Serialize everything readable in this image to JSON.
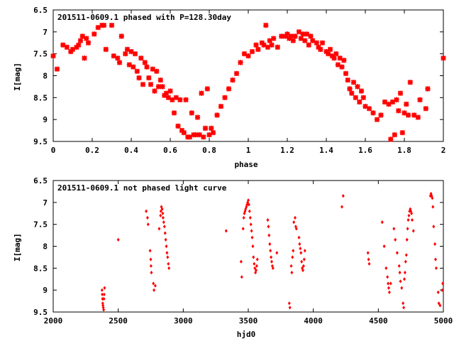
{
  "chart_data": [
    {
      "type": "scatter",
      "title": "201511-0609.1 phased with P=128.30day",
      "xlabel": "phase",
      "ylabel": "I[mag]",
      "xlim": [
        0,
        2
      ],
      "ylim": [
        9.5,
        6.5
      ],
      "y_inverted": true,
      "x_ticks": [
        0,
        0.2,
        0.4,
        0.6,
        0.8,
        1,
        1.2,
        1.4,
        1.6,
        1.8,
        2
      ],
      "x_tick_labels": [
        "0",
        "0.2",
        "0.4",
        "0.6",
        "0.8",
        "1",
        "1.2",
        "1.4",
        "1.6",
        "1.8",
        "2"
      ],
      "y_ticks": [
        6.5,
        7,
        7.5,
        8,
        8.5,
        9,
        9.5
      ],
      "y_tick_labels": [
        "6.5",
        "7",
        "7.5",
        "8",
        "8.5",
        "9",
        "9.5"
      ],
      "marker": "star",
      "color": "#ff0000",
      "grid": false,
      "points": [
        [
          0.0,
          7.55
        ],
        [
          0.02,
          7.85
        ],
        [
          0.05,
          7.3
        ],
        [
          0.07,
          7.35
        ],
        [
          0.09,
          7.45
        ],
        [
          0.1,
          7.4
        ],
        [
          0.12,
          7.35
        ],
        [
          0.13,
          7.3
        ],
        [
          0.14,
          7.2
        ],
        [
          0.15,
          7.1
        ],
        [
          0.16,
          7.6
        ],
        [
          0.17,
          7.15
        ],
        [
          0.18,
          7.25
        ],
        [
          0.21,
          7.05
        ],
        [
          0.23,
          6.9
        ],
        [
          0.25,
          6.85
        ],
        [
          0.26,
          6.85
        ],
        [
          0.27,
          7.4
        ],
        [
          0.3,
          6.85
        ],
        [
          0.31,
          7.55
        ],
        [
          0.33,
          7.6
        ],
        [
          0.34,
          7.7
        ],
        [
          0.35,
          7.1
        ],
        [
          0.37,
          7.5
        ],
        [
          0.38,
          7.4
        ],
        [
          0.39,
          7.75
        ],
        [
          0.4,
          7.45
        ],
        [
          0.41,
          7.8
        ],
        [
          0.42,
          7.5
        ],
        [
          0.43,
          7.9
        ],
        [
          0.44,
          8.05
        ],
        [
          0.45,
          7.6
        ],
        [
          0.46,
          8.2
        ],
        [
          0.47,
          7.7
        ],
        [
          0.48,
          7.8
        ],
        [
          0.49,
          8.05
        ],
        [
          0.5,
          8.2
        ],
        [
          0.51,
          7.85
        ],
        [
          0.52,
          8.35
        ],
        [
          0.53,
          7.9
        ],
        [
          0.54,
          8.25
        ],
        [
          0.55,
          8.1
        ],
        [
          0.56,
          8.25
        ],
        [
          0.57,
          8.45
        ],
        [
          0.58,
          8.4
        ],
        [
          0.59,
          8.5
        ],
        [
          0.6,
          8.35
        ],
        [
          0.61,
          8.55
        ],
        [
          0.62,
          8.85
        ],
        [
          0.63,
          8.5
        ],
        [
          0.64,
          9.15
        ],
        [
          0.65,
          8.55
        ],
        [
          0.66,
          9.25
        ],
        [
          0.67,
          9.3
        ],
        [
          0.68,
          8.55
        ],
        [
          0.69,
          9.4
        ],
        [
          0.7,
          9.4
        ],
        [
          0.71,
          8.85
        ],
        [
          0.72,
          9.35
        ],
        [
          0.73,
          9.35
        ],
        [
          0.74,
          8.95
        ],
        [
          0.75,
          9.35
        ],
        [
          0.76,
          8.4
        ],
        [
          0.77,
          9.4
        ],
        [
          0.78,
          9.2
        ],
        [
          0.79,
          8.3
        ],
        [
          0.8,
          9.35
        ],
        [
          0.81,
          9.2
        ],
        [
          0.82,
          9.3
        ],
        [
          0.84,
          8.9
        ],
        [
          0.86,
          8.7
        ],
        [
          0.88,
          8.5
        ],
        [
          0.9,
          8.3
        ],
        [
          0.92,
          8.1
        ],
        [
          0.94,
          7.95
        ],
        [
          0.96,
          7.7
        ],
        [
          0.98,
          7.5
        ],
        [
          1.0,
          7.55
        ],
        [
          1.02,
          7.45
        ],
        [
          1.04,
          7.3
        ],
        [
          1.05,
          7.4
        ],
        [
          1.07,
          7.25
        ],
        [
          1.08,
          7.3
        ],
        [
          1.09,
          6.85
        ],
        [
          1.1,
          7.35
        ],
        [
          1.11,
          7.2
        ],
        [
          1.12,
          7.3
        ],
        [
          1.13,
          7.15
        ],
        [
          1.15,
          7.35
        ],
        [
          1.17,
          7.1
        ],
        [
          1.19,
          7.1
        ],
        [
          1.2,
          7.05
        ],
        [
          1.21,
          7.15
        ],
        [
          1.22,
          7.1
        ],
        [
          1.23,
          7.2
        ],
        [
          1.24,
          7.1
        ],
        [
          1.26,
          7.0
        ],
        [
          1.27,
          7.15
        ],
        [
          1.28,
          7.05
        ],
        [
          1.29,
          7.2
        ],
        [
          1.3,
          7.05
        ],
        [
          1.31,
          7.3
        ],
        [
          1.32,
          7.1
        ],
        [
          1.33,
          7.2
        ],
        [
          1.35,
          7.25
        ],
        [
          1.36,
          7.35
        ],
        [
          1.37,
          7.4
        ],
        [
          1.38,
          7.25
        ],
        [
          1.4,
          7.45
        ],
        [
          1.41,
          7.5
        ],
        [
          1.42,
          7.4
        ],
        [
          1.43,
          7.55
        ],
        [
          1.44,
          7.6
        ],
        [
          1.45,
          7.5
        ],
        [
          1.46,
          7.75
        ],
        [
          1.47,
          7.6
        ],
        [
          1.48,
          7.8
        ],
        [
          1.49,
          7.65
        ],
        [
          1.5,
          7.95
        ],
        [
          1.51,
          8.1
        ],
        [
          1.52,
          8.3
        ],
        [
          1.53,
          8.4
        ],
        [
          1.54,
          8.15
        ],
        [
          1.55,
          8.5
        ],
        [
          1.56,
          8.25
        ],
        [
          1.57,
          8.6
        ],
        [
          1.58,
          8.35
        ],
        [
          1.59,
          8.5
        ],
        [
          1.6,
          8.7
        ],
        [
          1.62,
          8.75
        ],
        [
          1.64,
          8.85
        ],
        [
          1.66,
          9.0
        ],
        [
          1.68,
          8.9
        ],
        [
          1.7,
          8.6
        ],
        [
          1.72,
          8.65
        ],
        [
          1.73,
          9.45
        ],
        [
          1.74,
          8.6
        ],
        [
          1.75,
          9.35
        ],
        [
          1.76,
          8.55
        ],
        [
          1.77,
          8.8
        ],
        [
          1.78,
          8.4
        ],
        [
          1.79,
          9.3
        ],
        [
          1.8,
          8.85
        ],
        [
          1.81,
          8.65
        ],
        [
          1.82,
          8.9
        ],
        [
          1.83,
          8.15
        ],
        [
          1.85,
          8.9
        ],
        [
          1.87,
          8.95
        ],
        [
          1.88,
          8.55
        ],
        [
          1.91,
          8.75
        ],
        [
          1.92,
          8.3
        ],
        [
          2.0,
          7.6
        ]
      ]
    },
    {
      "type": "scatter",
      "title": "201511-0609.1 not phased light curve",
      "xlabel": "hjd0",
      "ylabel": "I[mag]",
      "xlim": [
        2000,
        5000
      ],
      "ylim": [
        9.5,
        6.5
      ],
      "y_inverted": true,
      "x_ticks": [
        2000,
        2500,
        3000,
        3500,
        4000,
        4500,
        5000
      ],
      "x_tick_labels": [
        "2000",
        "2500",
        "3000",
        "3500",
        "4000",
        "4500",
        "5000"
      ],
      "y_ticks": [
        6.5,
        7,
        7.5,
        8,
        8.5,
        9,
        9.5
      ],
      "y_tick_labels": [
        "6.5",
        "7",
        "7.5",
        "8",
        "8.5",
        "9",
        "9.5"
      ],
      "marker": "diamond",
      "color": "#ff0000",
      "grid": false,
      "points": [
        [
          2375,
          9.0
        ],
        [
          2377,
          9.1
        ],
        [
          2379,
          9.2
        ],
        [
          2381,
          9.3
        ],
        [
          2383,
          9.35
        ],
        [
          2385,
          9.4
        ],
        [
          2388,
          9.45
        ],
        [
          2390,
          9.2
        ],
        [
          2392,
          9.1
        ],
        [
          2395,
          8.95
        ],
        [
          2500,
          7.85
        ],
        [
          2715,
          7.2
        ],
        [
          2725,
          7.35
        ],
        [
          2730,
          7.5
        ],
        [
          2745,
          8.1
        ],
        [
          2750,
          8.3
        ],
        [
          2752,
          8.45
        ],
        [
          2755,
          8.6
        ],
        [
          2770,
          8.85
        ],
        [
          2775,
          9.0
        ],
        [
          2785,
          8.9
        ],
        [
          2815,
          7.6
        ],
        [
          2825,
          7.3
        ],
        [
          2828,
          7.2
        ],
        [
          2832,
          7.1
        ],
        [
          2838,
          7.15
        ],
        [
          2842,
          7.25
        ],
        [
          2845,
          7.35
        ],
        [
          2850,
          7.45
        ],
        [
          2855,
          7.55
        ],
        [
          2860,
          7.7
        ],
        [
          2865,
          7.85
        ],
        [
          2870,
          8.0
        ],
        [
          2875,
          8.15
        ],
        [
          2880,
          8.25
        ],
        [
          2885,
          8.4
        ],
        [
          2890,
          8.5
        ],
        [
          3330,
          7.65
        ],
        [
          3445,
          8.35
        ],
        [
          3450,
          8.7
        ],
        [
          3460,
          7.6
        ],
        [
          3465,
          7.35
        ],
        [
          3470,
          7.25
        ],
        [
          3475,
          7.2
        ],
        [
          3480,
          7.15
        ],
        [
          3485,
          7.1
        ],
        [
          3490,
          7.05
        ],
        [
          3495,
          7.0
        ],
        [
          3500,
          6.95
        ],
        [
          3505,
          7.05
        ],
        [
          3510,
          7.2
        ],
        [
          3515,
          7.35
        ],
        [
          3520,
          7.5
        ],
        [
          3525,
          7.65
        ],
        [
          3530,
          7.8
        ],
        [
          3535,
          8.0
        ],
        [
          3540,
          8.25
        ],
        [
          3545,
          8.4
        ],
        [
          3550,
          8.5
        ],
        [
          3555,
          8.6
        ],
        [
          3560,
          8.55
        ],
        [
          3565,
          8.45
        ],
        [
          3570,
          8.3
        ],
        [
          3650,
          7.4
        ],
        [
          3655,
          7.55
        ],
        [
          3660,
          7.75
        ],
        [
          3665,
          7.95
        ],
        [
          3670,
          8.1
        ],
        [
          3675,
          8.25
        ],
        [
          3680,
          8.35
        ],
        [
          3685,
          8.45
        ],
        [
          3690,
          8.5
        ],
        [
          3720,
          8.15
        ],
        [
          3815,
          9.3
        ],
        [
          3820,
          9.4
        ],
        [
          3830,
          8.45
        ],
        [
          3835,
          8.6
        ],
        [
          3840,
          8.25
        ],
        [
          3845,
          8.1
        ],
        [
          3850,
          7.45
        ],
        [
          3860,
          7.35
        ],
        [
          3865,
          7.55
        ],
        [
          3870,
          7.6
        ],
        [
          3890,
          7.8
        ],
        [
          3895,
          7.95
        ],
        [
          3900,
          8.05
        ],
        [
          3905,
          8.15
        ],
        [
          3910,
          8.35
        ],
        [
          3915,
          8.5
        ],
        [
          3920,
          8.55
        ],
        [
          3925,
          8.45
        ],
        [
          3930,
          8.3
        ],
        [
          3935,
          8.1
        ],
        [
          4220,
          7.1
        ],
        [
          4230,
          6.85
        ],
        [
          4420,
          8.15
        ],
        [
          4425,
          8.3
        ],
        [
          4430,
          8.4
        ],
        [
          4530,
          7.45
        ],
        [
          4545,
          8.0
        ],
        [
          4560,
          8.5
        ],
        [
          4570,
          8.7
        ],
        [
          4575,
          8.85
        ],
        [
          4580,
          8.95
        ],
        [
          4585,
          9.05
        ],
        [
          4595,
          8.85
        ],
        [
          4620,
          7.6
        ],
        [
          4630,
          7.85
        ],
        [
          4645,
          8.15
        ],
        [
          4660,
          8.45
        ],
        [
          4665,
          8.6
        ],
        [
          4670,
          8.8
        ],
        [
          4680,
          8.95
        ],
        [
          4690,
          9.3
        ],
        [
          4695,
          9.4
        ],
        [
          4700,
          8.75
        ],
        [
          4705,
          8.6
        ],
        [
          4710,
          8.35
        ],
        [
          4715,
          8.2
        ],
        [
          4720,
          7.85
        ],
        [
          4725,
          7.6
        ],
        [
          4730,
          7.4
        ],
        [
          4735,
          7.3
        ],
        [
          4740,
          7.2
        ],
        [
          4745,
          7.15
        ],
        [
          4750,
          7.2
        ],
        [
          4755,
          7.25
        ],
        [
          4760,
          7.4
        ],
        [
          4770,
          7.65
        ],
        [
          4900,
          6.85
        ],
        [
          4905,
          6.8
        ],
        [
          4910,
          6.85
        ],
        [
          4915,
          6.9
        ],
        [
          4920,
          7.1
        ],
        [
          4925,
          7.55
        ],
        [
          4935,
          7.95
        ],
        [
          4940,
          8.3
        ],
        [
          4945,
          8.5
        ],
        [
          4960,
          9.05
        ],
        [
          4965,
          9.3
        ],
        [
          4975,
          9.35
        ],
        [
          4990,
          9.0
        ],
        [
          4995,
          8.85
        ]
      ]
    }
  ]
}
